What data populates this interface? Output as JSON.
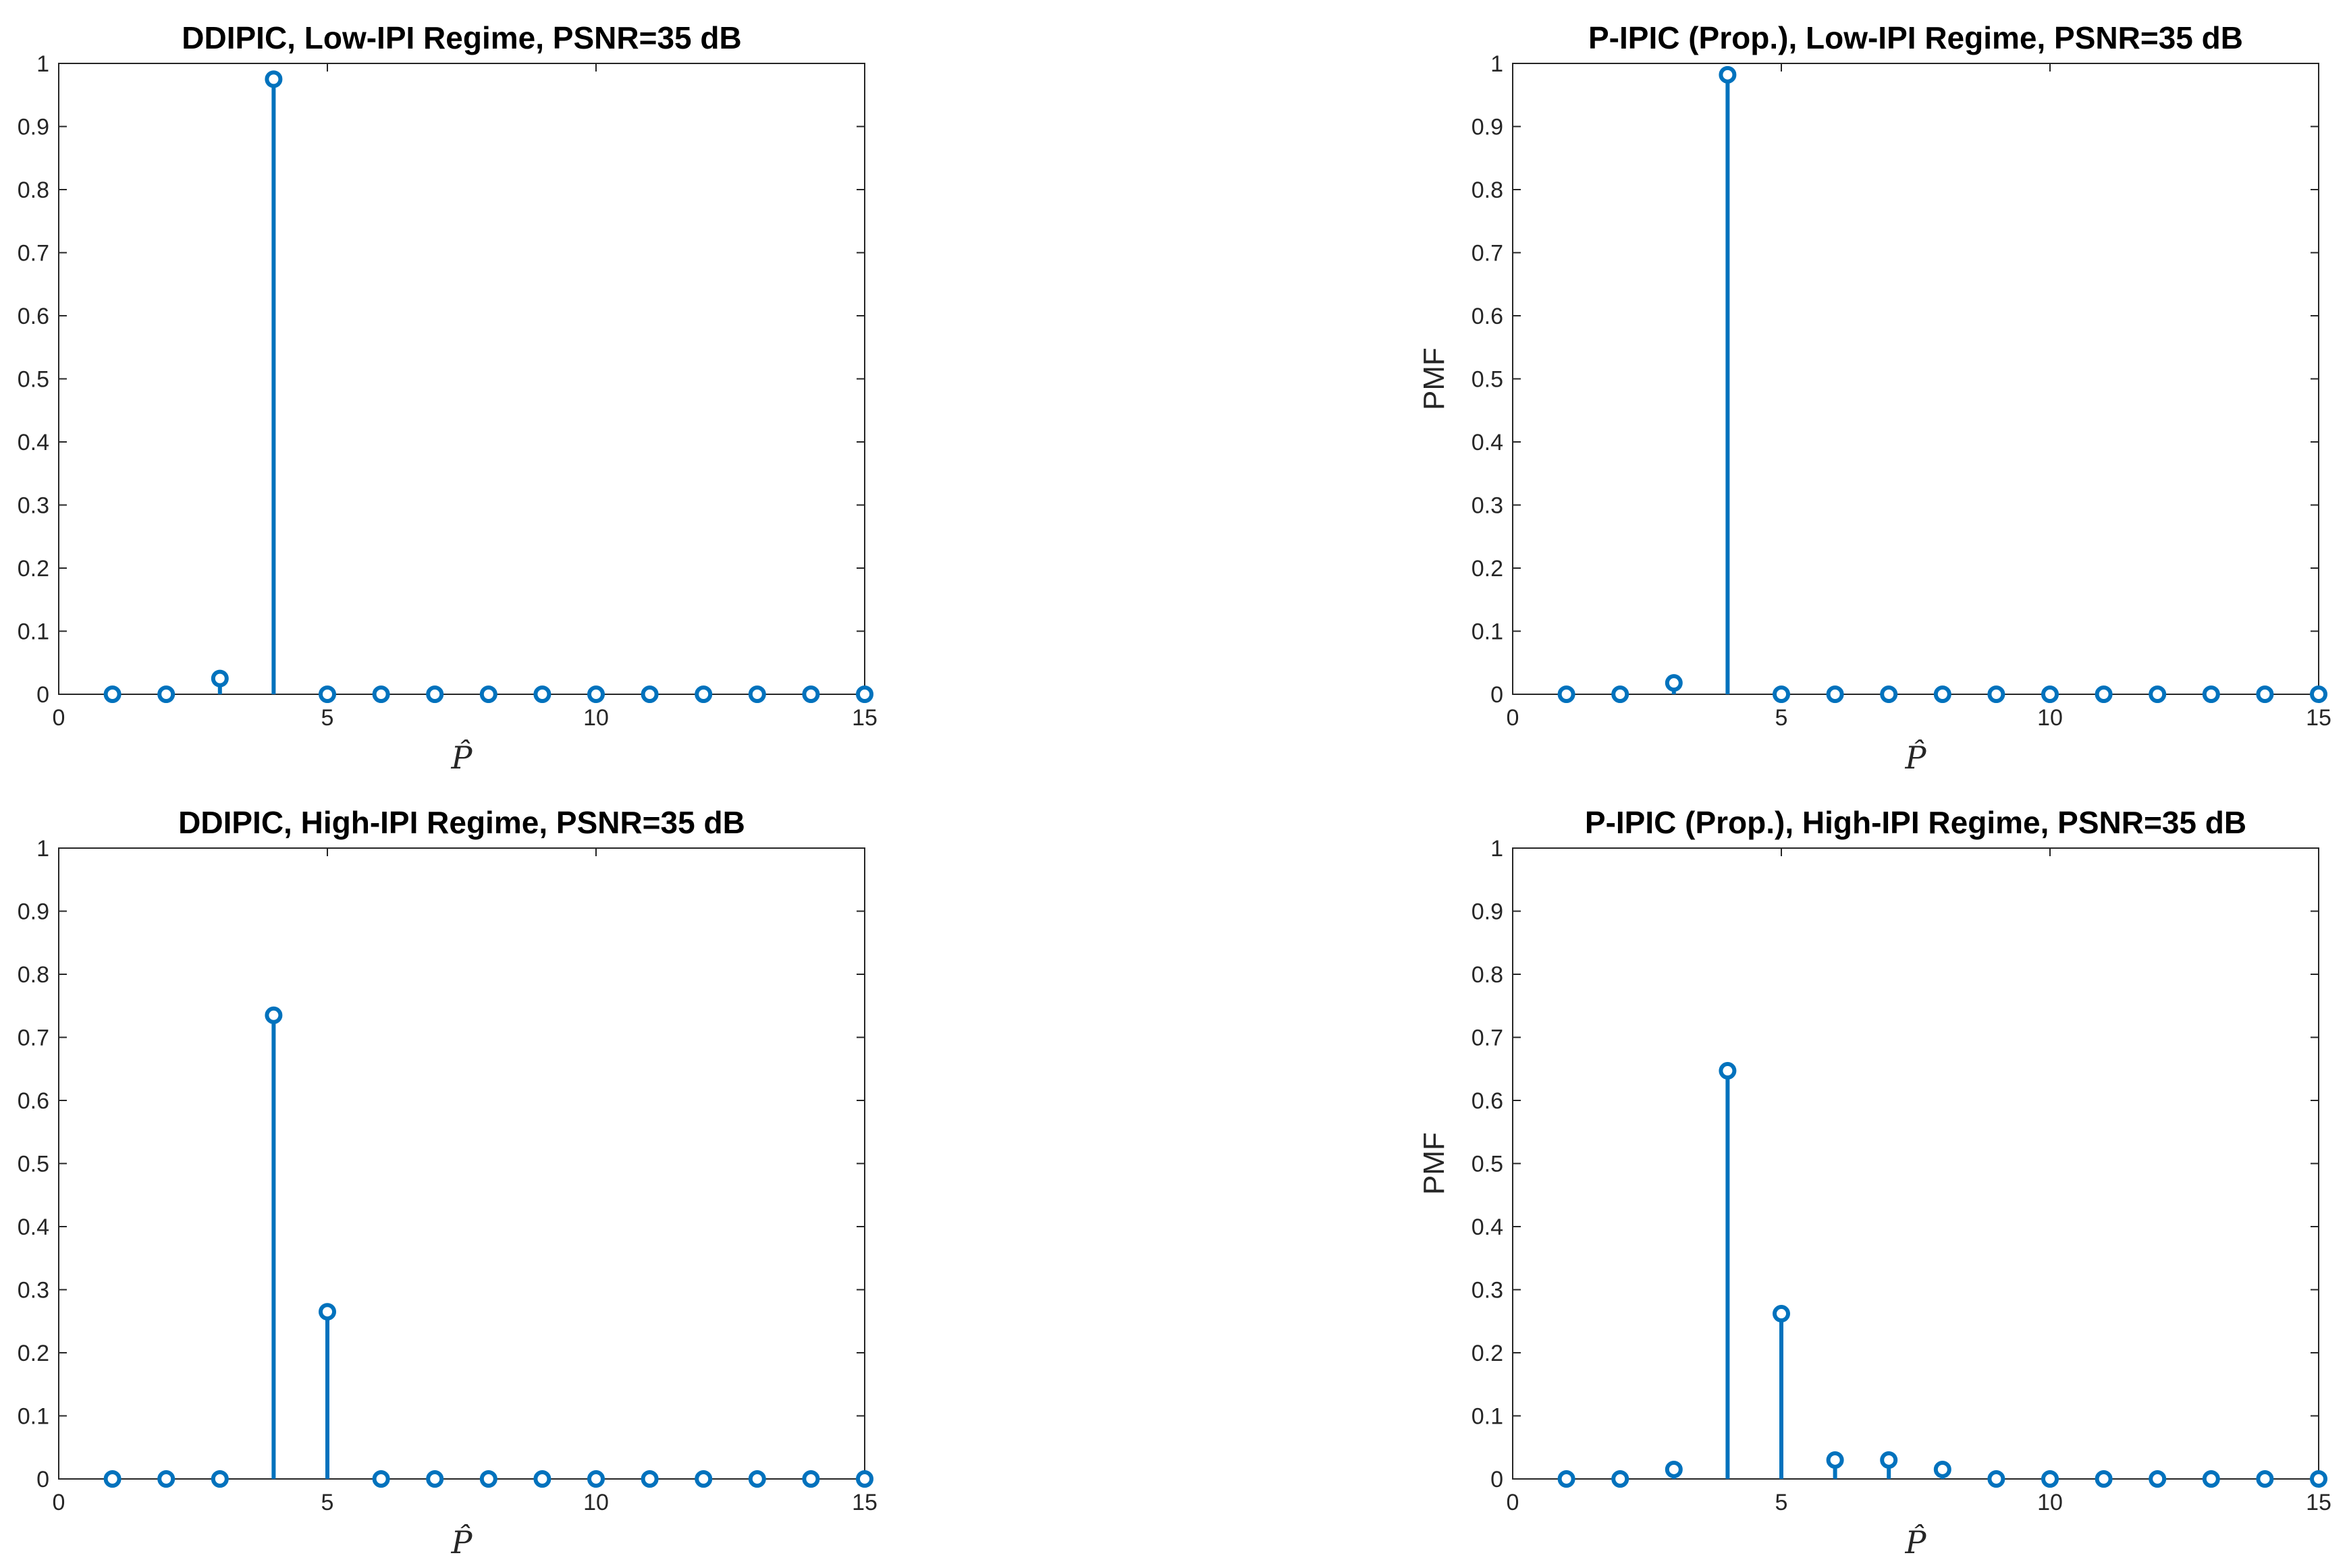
{
  "chart_data": [
    {
      "type": "stem",
      "title": "DDIPIC, Low-IPI Regime, PSNR=35 dB",
      "xlabel": "P̂",
      "ylabel": "",
      "xlim": [
        0,
        15
      ],
      "ylim": [
        0,
        1
      ],
      "xticks": [
        "0",
        "5",
        "10",
        "15"
      ],
      "yticks": [
        "0",
        "0.1",
        "0.2",
        "0.3",
        "0.4",
        "0.5",
        "0.6",
        "0.7",
        "0.8",
        "0.9",
        "1"
      ],
      "grid": false,
      "x": [
        1,
        2,
        3,
        4,
        5,
        6,
        7,
        8,
        9,
        10,
        11,
        12,
        13,
        14,
        15
      ],
      "values": [
        0,
        0,
        0.025,
        0.975,
        0,
        0,
        0,
        0,
        0,
        0,
        0,
        0,
        0,
        0,
        0
      ],
      "color": "#0072BD"
    },
    {
      "type": "stem",
      "title": "P-IPIC (Prop.), Low-IPI Regime, PSNR=35 dB",
      "xlabel": "P̂",
      "ylabel": "PMF",
      "xlim": [
        0,
        15
      ],
      "ylim": [
        0,
        1
      ],
      "xticks": [
        "0",
        "5",
        "10",
        "15"
      ],
      "yticks": [
        "0",
        "0.1",
        "0.2",
        "0.3",
        "0.4",
        "0.5",
        "0.6",
        "0.7",
        "0.8",
        "0.9",
        "1"
      ],
      "grid": false,
      "x": [
        1,
        2,
        3,
        4,
        5,
        6,
        7,
        8,
        9,
        10,
        11,
        12,
        13,
        14,
        15
      ],
      "values": [
        0,
        0,
        0.018,
        0.982,
        0,
        0,
        0,
        0,
        0,
        0,
        0,
        0,
        0,
        0,
        0
      ],
      "color": "#0072BD"
    },
    {
      "type": "stem",
      "title": "DDIPIC, High-IPI Regime, PSNR=35 dB",
      "xlabel": "P̂",
      "ylabel": "",
      "xlim": [
        0,
        15
      ],
      "ylim": [
        0,
        1
      ],
      "xticks": [
        "0",
        "5",
        "10",
        "15"
      ],
      "yticks": [
        "0",
        "0.1",
        "0.2",
        "0.3",
        "0.4",
        "0.5",
        "0.6",
        "0.7",
        "0.8",
        "0.9",
        "1"
      ],
      "grid": false,
      "x": [
        1,
        2,
        3,
        4,
        5,
        6,
        7,
        8,
        9,
        10,
        11,
        12,
        13,
        14,
        15
      ],
      "values": [
        0,
        0,
        0,
        0.735,
        0.265,
        0,
        0,
        0,
        0,
        0,
        0,
        0,
        0,
        0,
        0
      ],
      "color": "#0072BD"
    },
    {
      "type": "stem",
      "title": "P-IPIC (Prop.), High-IPI Regime, PSNR=35 dB",
      "xlabel": "P̂",
      "ylabel": "PMF",
      "xlim": [
        0,
        15
      ],
      "ylim": [
        0,
        1
      ],
      "xticks": [
        "0",
        "5",
        "10",
        "15"
      ],
      "yticks": [
        "0",
        "0.1",
        "0.2",
        "0.3",
        "0.4",
        "0.5",
        "0.6",
        "0.7",
        "0.8",
        "0.9",
        "1"
      ],
      "grid": false,
      "x": [
        1,
        2,
        3,
        4,
        5,
        6,
        7,
        8,
        9,
        10,
        11,
        12,
        13,
        14,
        15
      ],
      "values": [
        0,
        0,
        0.015,
        0.647,
        0.262,
        0.03,
        0.03,
        0.015,
        0,
        0,
        0,
        0,
        0,
        0,
        0
      ],
      "color": "#0072BD"
    }
  ]
}
